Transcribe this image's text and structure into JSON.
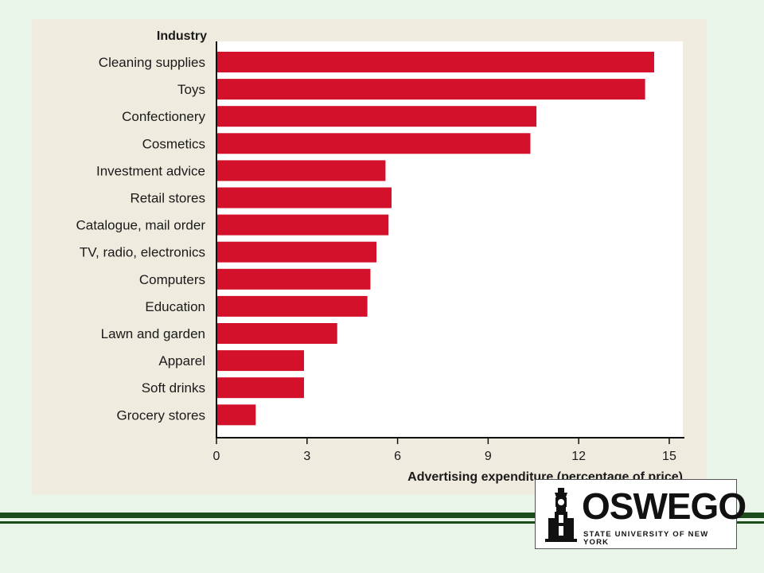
{
  "chart_data": {
    "type": "bar",
    "orientation": "horizontal",
    "category_axis_title": "Industry",
    "xlabel": "Advertising expenditure (percentage of price)",
    "categories": [
      "Cleaning supplies",
      "Toys",
      "Confectionery",
      "Cosmetics",
      "Investment advice",
      "Retail stores",
      "Catalogue, mail order",
      "TV, radio, electronics",
      "Computers",
      "Education",
      "Lawn and garden",
      "Apparel",
      "Soft drinks",
      "Grocery stores"
    ],
    "values": [
      14.5,
      14.2,
      10.6,
      10.4,
      5.6,
      5.8,
      5.7,
      5.3,
      5.1,
      5.0,
      4.0,
      2.9,
      2.9,
      1.3
    ],
    "xlim": [
      0,
      15
    ],
    "xticks": [
      0,
      3,
      6,
      9,
      12,
      15
    ],
    "grid": false,
    "bar_color": "#d3112b",
    "panel_color": "#efebdf"
  },
  "slide": {
    "background": "#eaf5ea",
    "rule_color": "#1d4d1d"
  },
  "logo": {
    "wordmark": "OSWEGO",
    "subtitle": "STATE UNIVERSITY OF NEW YORK",
    "icon": "clock-tower-icon"
  }
}
